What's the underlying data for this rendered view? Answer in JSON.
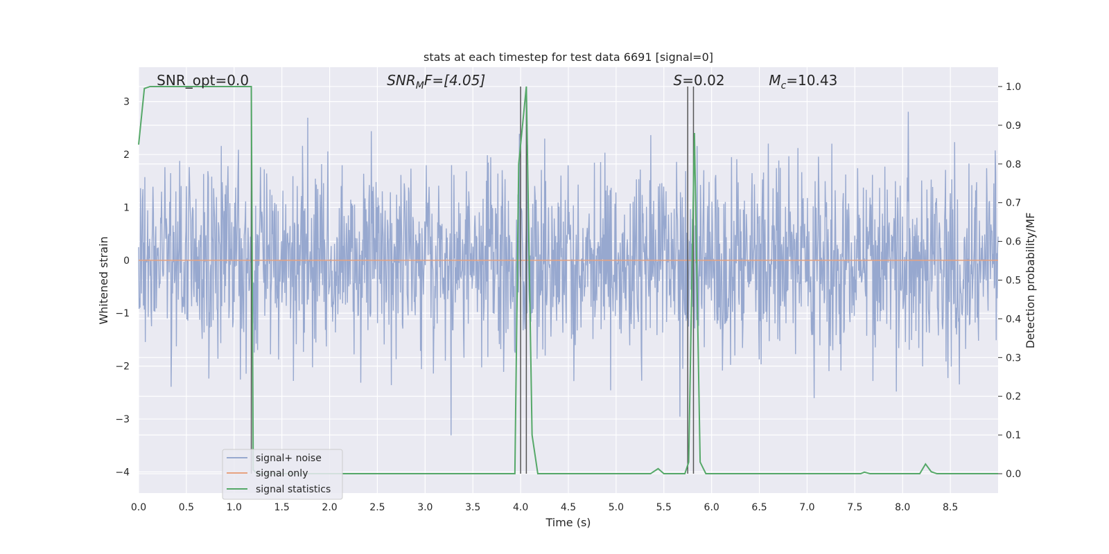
{
  "chart_data": {
    "type": "line",
    "title": "stats at each timestep for test data 6691 [signal=0]",
    "xlabel": "Time (s)",
    "ylabel": "Whitened strain",
    "y2label": "Detection probability/MF",
    "xlim": [
      0.0,
      9.0
    ],
    "ylim": [
      -4.4,
      3.65
    ],
    "y2lim": [
      -0.05,
      1.05
    ],
    "xticks": [
      "0.0",
      "0.5",
      "1.0",
      "1.5",
      "2.0",
      "2.5",
      "3.0",
      "3.5",
      "4.0",
      "4.5",
      "5.0",
      "5.5",
      "6.0",
      "6.5",
      "7.0",
      "7.5",
      "8.0",
      "8.5"
    ],
    "xtick_values": [
      0,
      0.5,
      1,
      1.5,
      2,
      2.5,
      3,
      3.5,
      4,
      4.5,
      5,
      5.5,
      6,
      6.5,
      7,
      7.5,
      8,
      8.5
    ],
    "yticks": [
      "−4",
      "−3",
      "−2",
      "−1",
      "0",
      "1",
      "2",
      "3"
    ],
    "ytick_values": [
      -4,
      -3,
      -2,
      -1,
      0,
      1,
      2,
      3
    ],
    "y2ticks": [
      "0.0",
      "0.1",
      "0.2",
      "0.3",
      "0.4",
      "0.5",
      "0.6",
      "0.7",
      "0.8",
      "0.9",
      "1.0"
    ],
    "y2tick_values": [
      0,
      0.1,
      0.2,
      0.3,
      0.4,
      0.5,
      0.6,
      0.7,
      0.8,
      0.9,
      1.0
    ],
    "grid": true,
    "legend_position": "lower-left",
    "annotations": [
      {
        "main": "SNR_opt=0.0",
        "sub": "",
        "rest": "",
        "x": 0.19
      },
      {
        "main": "SNR",
        "sub": "M",
        "rest": "F=[4.05]",
        "x": 2.6,
        "italic": true
      },
      {
        "main": "S",
        "sub": "",
        "rest": "=0.02",
        "x": 5.6,
        "italic_main": true
      },
      {
        "main": "M",
        "sub": "c",
        "rest": "=10.43",
        "x": 6.6,
        "italic_main": true
      }
    ],
    "vertical_lines": [
      1.18,
      4.0,
      4.06,
      5.75,
      5.81
    ],
    "series": [
      {
        "name": "signal+ noise",
        "color": "#97a8cf",
        "axis": "left",
        "style": "noise",
        "noise_std": 0.92,
        "tail_min": -3.6,
        "tail_max": 3.4,
        "num_points": 1800
      },
      {
        "name": "signal only",
        "color": "#e6a27f",
        "axis": "left",
        "x": [
          0.0,
          9.0
        ],
        "values": [
          0.0,
          0.0
        ]
      },
      {
        "name": "signal statistics",
        "color": "#55a868",
        "axis": "right",
        "x": [
          0.0,
          0.06,
          0.12,
          1.18,
          1.2,
          1.24,
          1.28,
          3.94,
          3.98,
          4.06,
          4.12,
          4.18,
          5.36,
          5.44,
          5.5,
          5.72,
          5.76,
          5.82,
          5.88,
          5.94,
          7.56,
          7.6,
          7.66,
          8.18,
          8.24,
          8.3,
          8.36,
          9.0
        ],
        "values": [
          0.85,
          0.995,
          1.0,
          1.0,
          0.01,
          0.0,
          0.0,
          0.0,
          0.8,
          1.0,
          0.1,
          0.0,
          0.0,
          0.013,
          0.0,
          0.0,
          0.03,
          0.88,
          0.03,
          0.0,
          0.0,
          0.004,
          0.0,
          0.0,
          0.025,
          0.005,
          0.0,
          0.0
        ]
      }
    ]
  }
}
